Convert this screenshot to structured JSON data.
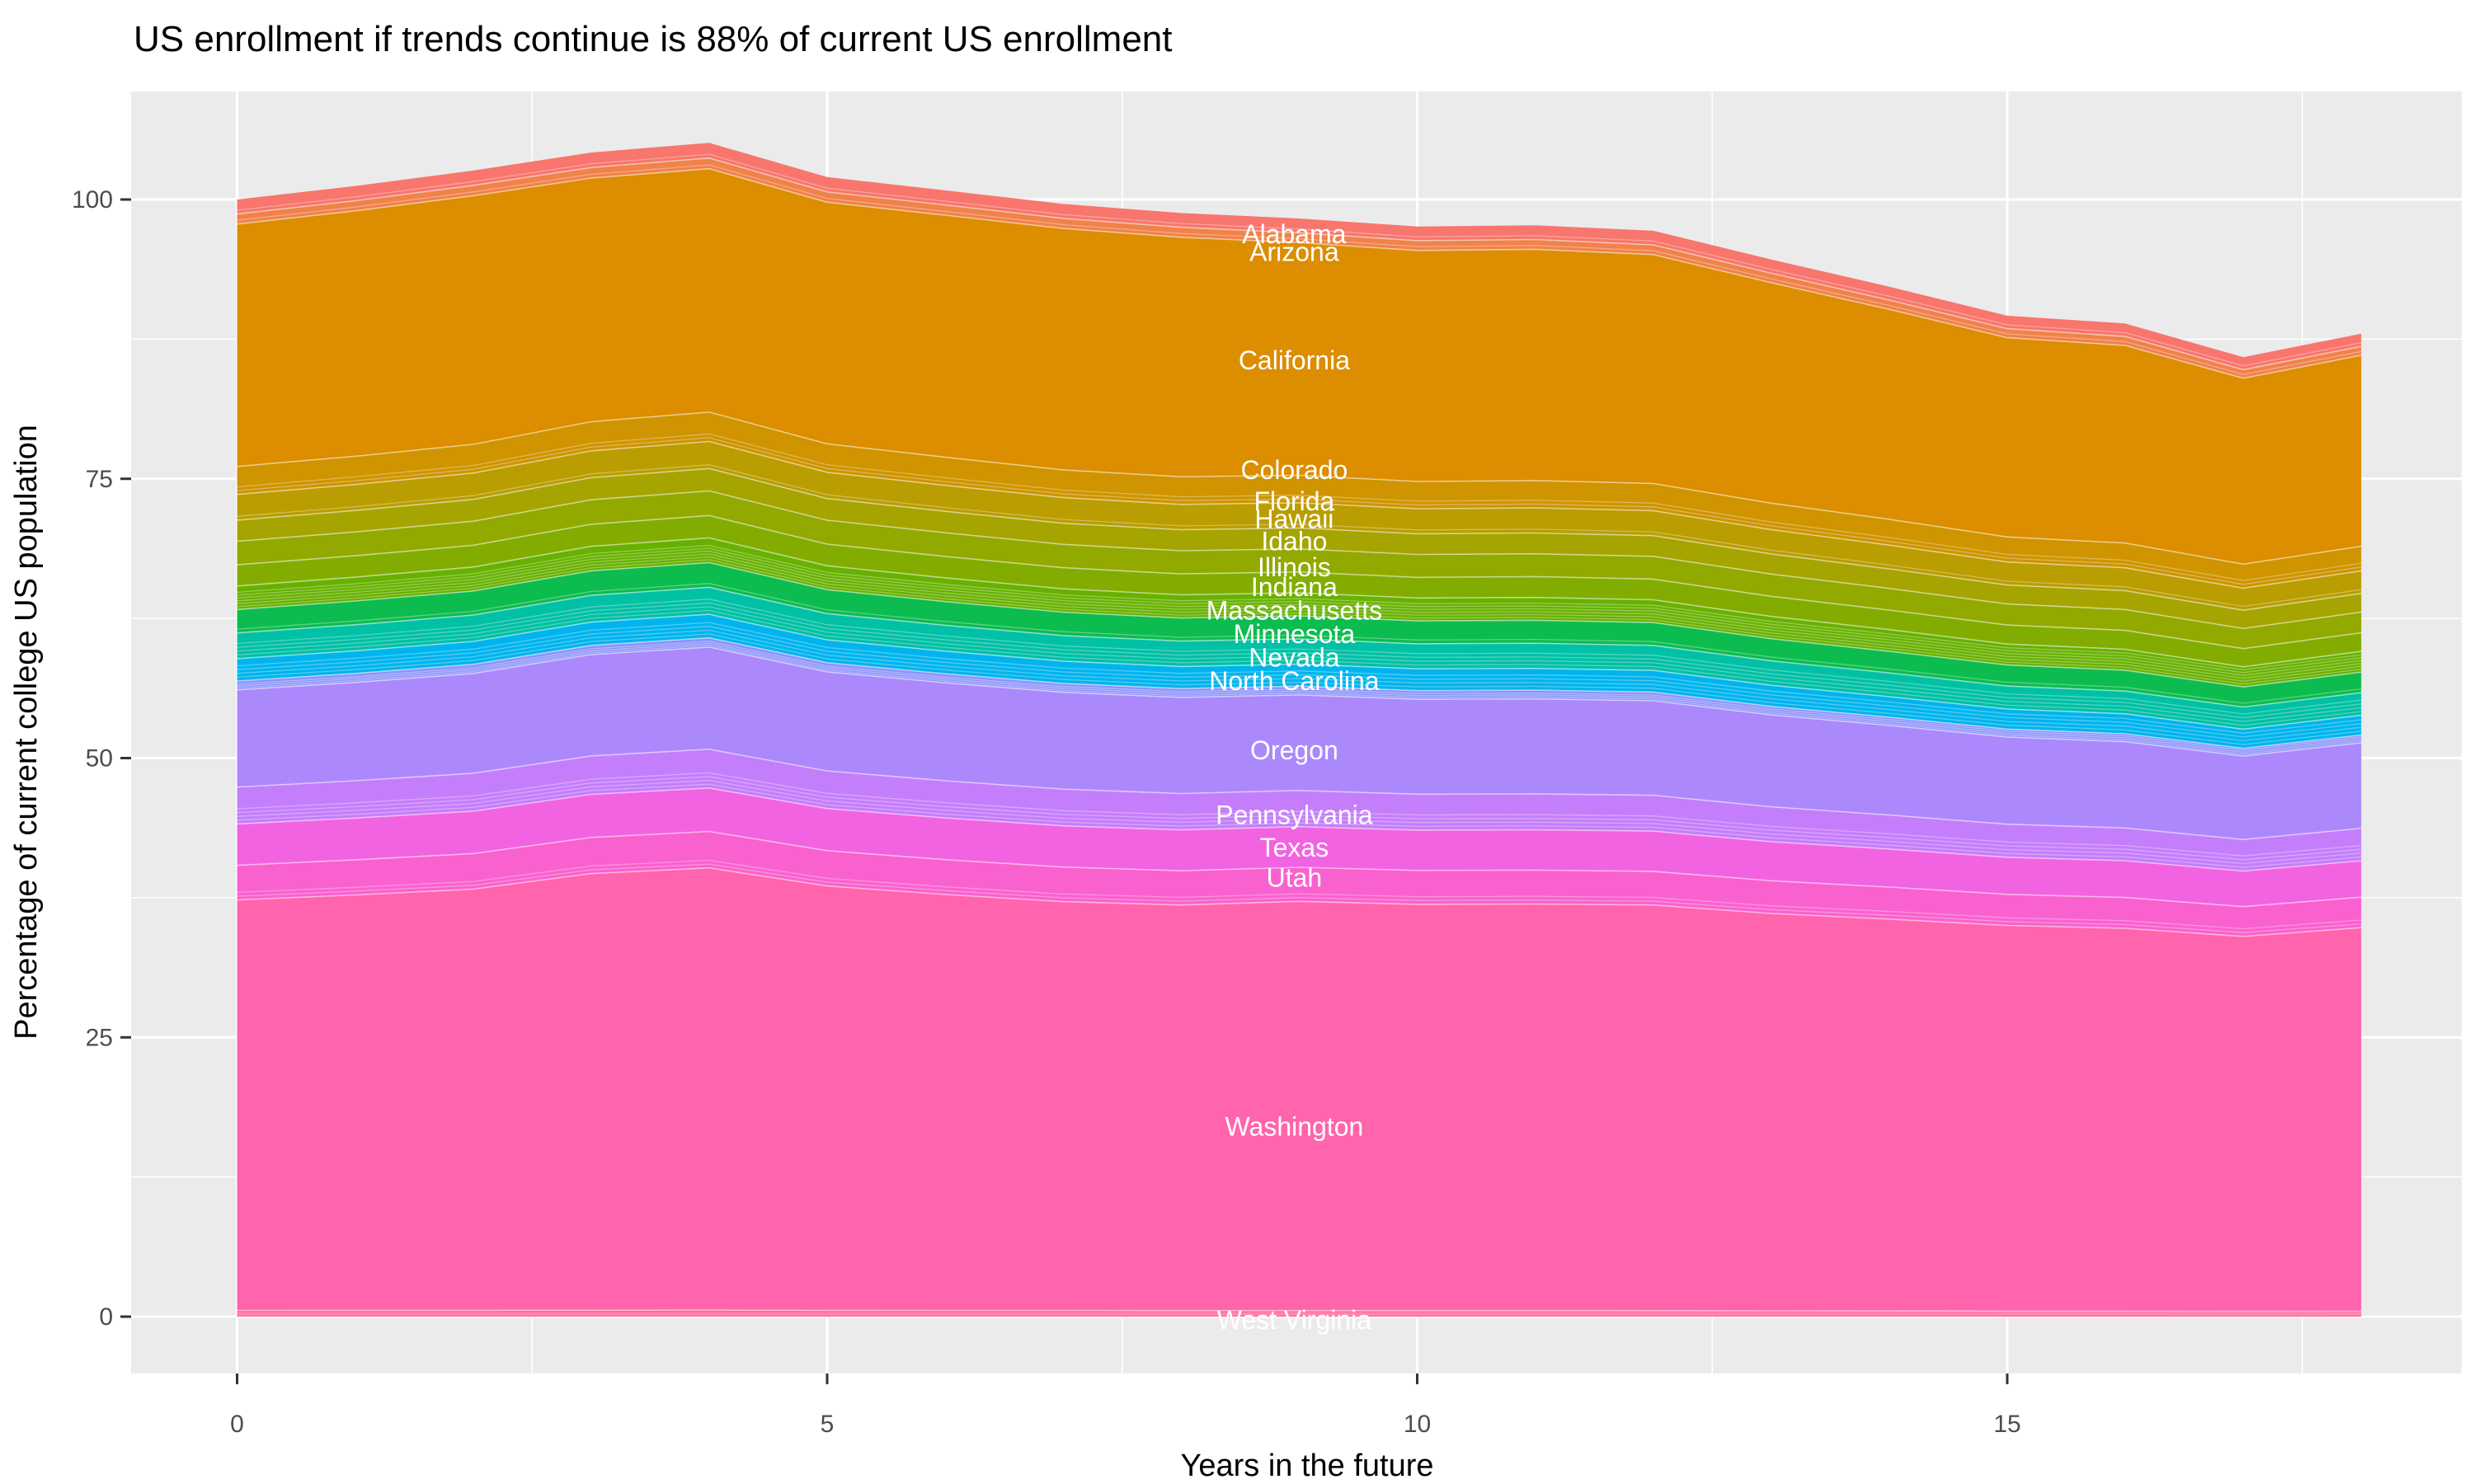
{
  "title": "US enrollment if trends continue is 88% of current US enrollment",
  "colors": {
    "panel_bg": "#EBEBEB",
    "grid": "#FFFFFF",
    "tick_mark": "#333333",
    "tick_label": "#4D4D4D",
    "title_text": "#000000",
    "state_label": "#FFFFFF"
  },
  "chart_data": {
    "type": "area",
    "stacked": true,
    "title": "US enrollment if trends continue is 88% of current US enrollment",
    "xlabel": "Years in the future",
    "ylabel": "Percentage of current college US population",
    "grid": "on",
    "legend": "none",
    "xlim": [
      -0.9,
      18.9
    ],
    "ylim": [
      -5.1,
      109.7
    ],
    "x_ticks": [
      0,
      5,
      10,
      15
    ],
    "x_minor_ticks": [
      2.5,
      7.5,
      12.5,
      17.5
    ],
    "y_ticks": [
      0,
      25,
      50,
      75,
      100
    ],
    "y_minor_ticks": [
      12.5,
      37.5,
      62.5,
      87.5
    ],
    "x": [
      0,
      1,
      2,
      3,
      4,
      5,
      6,
      7,
      8,
      9,
      10,
      11,
      12,
      13,
      14,
      15,
      16,
      17,
      18
    ],
    "total_by_year": [
      100.0,
      101.2,
      102.6,
      104.2,
      105.0,
      102.0,
      100.8,
      99.6,
      98.8,
      98.3,
      97.6,
      97.7,
      97.2,
      94.6,
      92.2,
      89.6,
      88.9,
      85.9,
      88.0
    ],
    "label_x": 9,
    "series": [
      {
        "name": "Alabama",
        "color": "#F8766D",
        "label_v": 96.9,
        "unlabeled_after": 1,
        "values": [
          1.3,
          1.32,
          1.33,
          1.35,
          1.37,
          1.33,
          1.31,
          1.29,
          1.28,
          1.28,
          1.27,
          1.27,
          1.26,
          1.23,
          1.2,
          1.16,
          1.16,
          1.12,
          1.14
        ]
      },
      {
        "name": "Arizona",
        "color": "#F0824A",
        "label_v": 95.3,
        "unlabeled_after": 1,
        "values": [
          0.9,
          0.91,
          0.92,
          0.94,
          0.95,
          0.92,
          0.91,
          0.9,
          0.89,
          0.88,
          0.88,
          0.88,
          0.87,
          0.85,
          0.83,
          0.81,
          0.8,
          0.77,
          0.79
        ]
      },
      {
        "name": "California",
        "color": "#DC8D00",
        "label_v": 85.6,
        "unlabeled_after": 0,
        "values": [
          21.7,
          21.96,
          22.26,
          21.81,
          21.79,
          21.63,
          21.67,
          21.61,
          21.44,
          20.83,
          20.68,
          20.7,
          20.49,
          19.73,
          18.8,
          17.84,
          17.69,
          16.64,
          17.1
        ]
      },
      {
        "name": "Colorado",
        "color": "#CF9400",
        "label_v": 75.8,
        "unlabeled_after": 2,
        "values": [
          2.5,
          2.53,
          2.57,
          2.61,
          2.63,
          2.55,
          2.52,
          2.49,
          2.47,
          2.46,
          2.44,
          2.44,
          2.43,
          2.37,
          2.31,
          2.24,
          2.22,
          2.15,
          2.2
        ]
      },
      {
        "name": "Florida",
        "color": "#BA9D00",
        "label_v": 73.0,
        "unlabeled_after": 1,
        "values": [
          2.3,
          2.33,
          2.36,
          2.4,
          2.42,
          2.35,
          2.32,
          2.29,
          2.27,
          2.26,
          2.24,
          2.25,
          2.24,
          2.18,
          2.12,
          2.06,
          2.04,
          1.98,
          2.02
        ]
      },
      {
        "name": "Hawaii",
        "color": "#A5A400",
        "label_v": 71.4,
        "unlabeled_after": 0,
        "values": [
          1.9,
          1.92,
          1.95,
          1.98,
          2.0,
          1.94,
          1.92,
          1.89,
          1.88,
          1.87,
          1.85,
          1.86,
          1.85,
          1.8,
          1.75,
          1.7,
          1.69,
          1.63,
          1.67
        ]
      },
      {
        "name": "Idaho",
        "color": "#92A900",
        "label_v": 69.4,
        "unlabeled_after": 0,
        "values": [
          2.1,
          2.13,
          2.15,
          2.19,
          2.21,
          2.14,
          2.12,
          2.09,
          2.07,
          2.06,
          2.05,
          2.05,
          2.04,
          1.99,
          1.94,
          1.88,
          1.87,
          1.8,
          1.85
        ]
      },
      {
        "name": "Illinois",
        "color": "#82AD00",
        "label_v": 67.1,
        "unlabeled_after": 0,
        "values": [
          1.9,
          1.92,
          1.95,
          1.98,
          2.0,
          1.94,
          1.92,
          1.89,
          1.88,
          1.87,
          1.85,
          1.86,
          1.85,
          1.8,
          1.75,
          1.7,
          1.69,
          1.63,
          1.67
        ]
      },
      {
        "name": "Indiana",
        "color": "#67B100",
        "label_v": 65.3,
        "unlabeled_after": 6,
        "values": [
          2.1,
          2.13,
          2.15,
          2.19,
          2.21,
          2.14,
          2.12,
          2.09,
          2.07,
          2.06,
          2.05,
          2.05,
          2.04,
          1.99,
          1.94,
          1.88,
          1.87,
          1.8,
          1.85
        ]
      },
      {
        "name": "Massachusetts",
        "color": "#0CBC4F",
        "label_v": 63.2,
        "unlabeled_after": 1,
        "values": [
          2.1,
          2.13,
          2.15,
          2.19,
          2.21,
          2.14,
          2.12,
          2.09,
          2.07,
          2.06,
          2.05,
          2.05,
          2.04,
          1.99,
          1.94,
          1.88,
          1.87,
          1.8,
          1.85
        ]
      },
      {
        "name": "Minnesota",
        "color": "#00C0A5",
        "label_v": 61.1,
        "unlabeled_after": 4,
        "values": [
          2.3,
          2.33,
          2.36,
          2.4,
          2.42,
          2.35,
          2.32,
          2.29,
          2.27,
          2.26,
          2.24,
          2.25,
          2.24,
          2.18,
          2.12,
          2.06,
          2.04,
          1.98,
          2.02
        ]
      },
      {
        "name": "Nevada",
        "color": "#00B4EE",
        "label_v": 59.0,
        "unlabeled_after": 4,
        "values": [
          2.0,
          2.02,
          2.05,
          2.08,
          2.1,
          2.04,
          2.02,
          1.99,
          1.98,
          1.97,
          1.95,
          1.95,
          1.94,
          1.89,
          1.84,
          1.79,
          1.78,
          1.72,
          1.76
        ]
      },
      {
        "name": "North Carolina",
        "color": "#8B93FB",
        "label_v": 56.9,
        "unlabeled_after": 3,
        "values": [
          0.8,
          0.81,
          0.82,
          0.83,
          0.84,
          0.82,
          0.81,
          0.8,
          0.79,
          0.79,
          0.78,
          0.78,
          0.78,
          0.76,
          0.74,
          0.72,
          0.71,
          0.69,
          0.7
        ]
      },
      {
        "name": "Oregon",
        "color": "#AC88FD",
        "label_v": 50.7,
        "unlabeled_after": 0,
        "values": [
          8.7,
          8.8,
          8.93,
          9.07,
          9.14,
          8.87,
          8.77,
          8.67,
          8.6,
          8.55,
          8.49,
          8.5,
          8.46,
          8.23,
          8.02,
          7.8,
          7.73,
          7.47,
          7.66
        ]
      },
      {
        "name": "Pennsylvania",
        "color": "#C57EFB",
        "label_v": 44.9,
        "unlabeled_after": 4,
        "values": [
          3.3,
          3.34,
          3.39,
          3.44,
          3.47,
          3.37,
          3.33,
          3.29,
          3.26,
          3.24,
          3.22,
          3.22,
          3.21,
          3.12,
          3.04,
          2.96,
          2.93,
          2.83,
          2.9
        ]
      },
      {
        "name": "Texas",
        "color": "#F263E2",
        "label_v": 42.0,
        "unlabeled_after": 0,
        "values": [
          3.7,
          3.74,
          3.8,
          3.86,
          3.89,
          3.77,
          3.73,
          3.69,
          3.66,
          3.64,
          3.61,
          3.61,
          3.6,
          3.5,
          3.41,
          3.32,
          3.29,
          3.18,
          3.26
        ]
      },
      {
        "name": "Utah",
        "color": "#F961CF",
        "label_v": 39.3,
        "unlabeled_after": 2,
        "values": [
          3.1,
          3.14,
          3.18,
          3.23,
          3.26,
          3.16,
          3.12,
          3.09,
          3.06,
          3.05,
          3.03,
          3.03,
          3.01,
          2.93,
          2.86,
          2.78,
          2.76,
          2.66,
          2.73
        ]
      },
      {
        "name": "Washington",
        "color": "#FF64AC",
        "label_v": 17.0,
        "unlabeled_after": 0,
        "values": [
          36.75,
          37.19,
          37.71,
          39.09,
          39.59,
          37.99,
          37.24,
          36.6,
          36.31,
          36.63,
          36.37,
          36.4,
          36.32,
          35.57,
          35.08,
          34.53,
          34.27,
          33.57,
          34.34
        ]
      },
      {
        "name": "West Virginia",
        "color": "#FF6698",
        "label_v": -0.3,
        "unlabeled_after": 2,
        "values": [
          0.55,
          0.56,
          0.56,
          0.57,
          0.58,
          0.56,
          0.55,
          0.55,
          0.54,
          0.54,
          0.54,
          0.54,
          0.53,
          0.52,
          0.51,
          0.49,
          0.49,
          0.47,
          0.48
        ]
      }
    ]
  }
}
